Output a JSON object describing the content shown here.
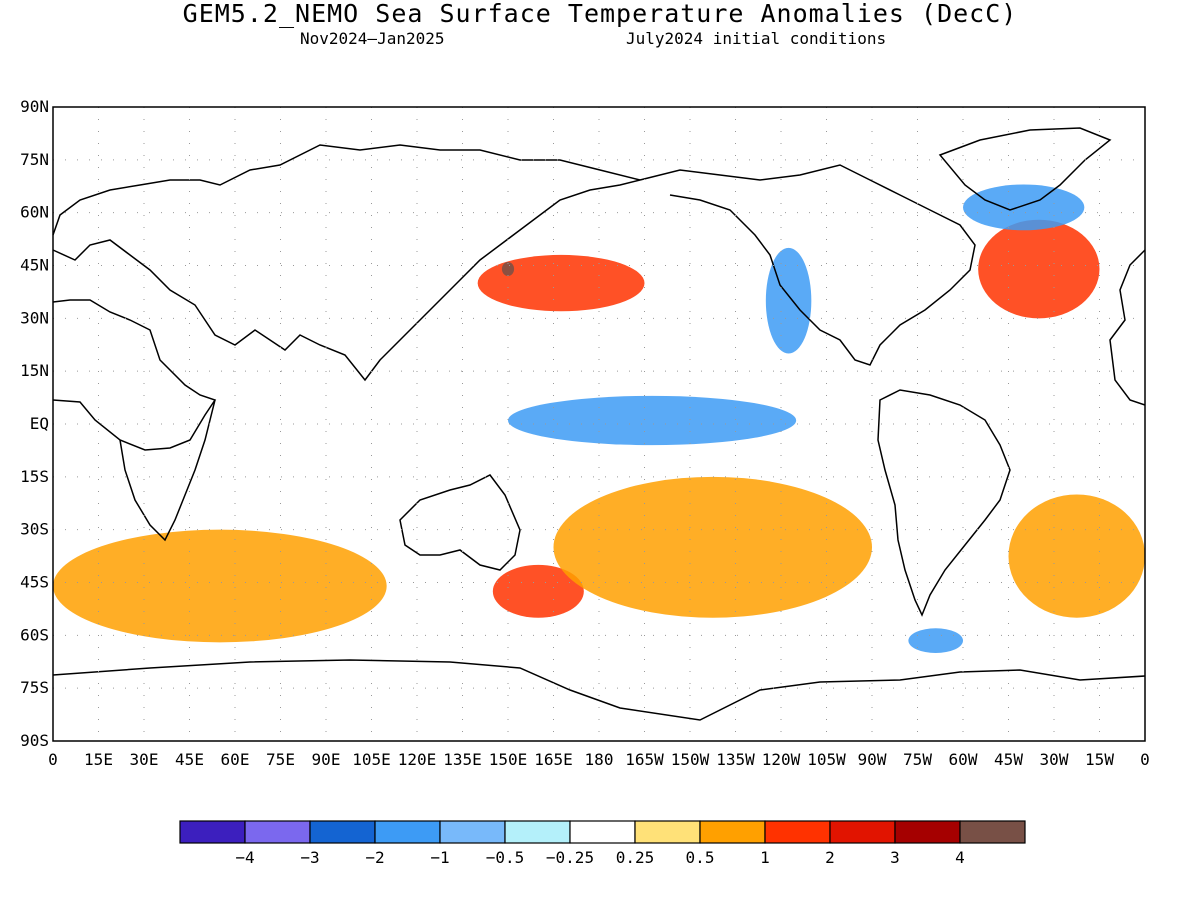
{
  "title": "GEM5.2_NEMO Sea Surface Temperature Anomalies (DecC)",
  "subtitle_period": "Nov2024—Jan2025",
  "subtitle_init": "July2024 initial conditions",
  "map": {
    "projection": "equirectangular",
    "lon_range": [
      0,
      360
    ],
    "lat_range": [
      -90,
      90
    ],
    "grid": "dotted",
    "lat_ticks": [
      "90N",
      "75N",
      "60N",
      "45N",
      "30N",
      "15N",
      "EQ",
      "15S",
      "30S",
      "45S",
      "60S",
      "75S",
      "90S"
    ],
    "lon_ticks": [
      "0",
      "15E",
      "30E",
      "45E",
      "60E",
      "75E",
      "90E",
      "105E",
      "120E",
      "135E",
      "150E",
      "165E",
      "180",
      "165W",
      "150W",
      "135W",
      "120W",
      "105W",
      "90W",
      "75W",
      "60W",
      "45W",
      "30W",
      "15W",
      "0"
    ],
    "anomaly_regions": [
      {
        "name": "equatorial-pacific-cold",
        "lon": [
          150,
          245
        ],
        "lat": [
          -6,
          8
        ],
        "level": -1
      },
      {
        "name": "kuroshio-warm",
        "lon": [
          140,
          195
        ],
        "lat": [
          32,
          48
        ],
        "level": 2
      },
      {
        "name": "kuroshio-peak",
        "lon": [
          148,
          152
        ],
        "lat": [
          42,
          46
        ],
        "level": 4
      },
      {
        "name": "california-current-cold",
        "lon": [
          235,
          250
        ],
        "lat": [
          20,
          50
        ],
        "level": -1
      },
      {
        "name": "gulf-stream-warm",
        "lon": [
          305,
          345
        ],
        "lat": [
          30,
          58
        ],
        "level": 2
      },
      {
        "name": "labrador-cold",
        "lon": [
          300,
          340
        ],
        "lat": [
          55,
          68
        ],
        "level": -1
      },
      {
        "name": "southern-indian-warm",
        "lon": [
          0,
          110
        ],
        "lat": [
          -62,
          -30
        ],
        "level": 1
      },
      {
        "name": "tasman-warm",
        "lon": [
          145,
          175
        ],
        "lat": [
          -55,
          -40
        ],
        "level": 2
      },
      {
        "name": "south-pacific-warm",
        "lon": [
          165,
          270
        ],
        "lat": [
          -55,
          -15
        ],
        "level": 1
      },
      {
        "name": "south-atlantic-warm",
        "lon": [
          315,
          360
        ],
        "lat": [
          -55,
          -20
        ],
        "level": 1
      },
      {
        "name": "drake-cold",
        "lon": [
          282,
          300
        ],
        "lat": [
          -65,
          -58
        ],
        "level": -1
      }
    ]
  },
  "colorbar": {
    "colors": [
      "#3c1fbe",
      "#7b68ee",
      "#1464d2",
      "#3d9bf5",
      "#78b9fa",
      "#b4f0fa",
      "#ffffff",
      "#ffe178",
      "#ffa000",
      "#ff3200",
      "#e11400",
      "#a50000",
      "#785046"
    ],
    "labels": [
      "−4",
      "−3",
      "−2",
      "−1",
      "−0.5",
      "−0.25",
      "0.25",
      "0.5",
      "1",
      "2",
      "3",
      "4"
    ]
  }
}
